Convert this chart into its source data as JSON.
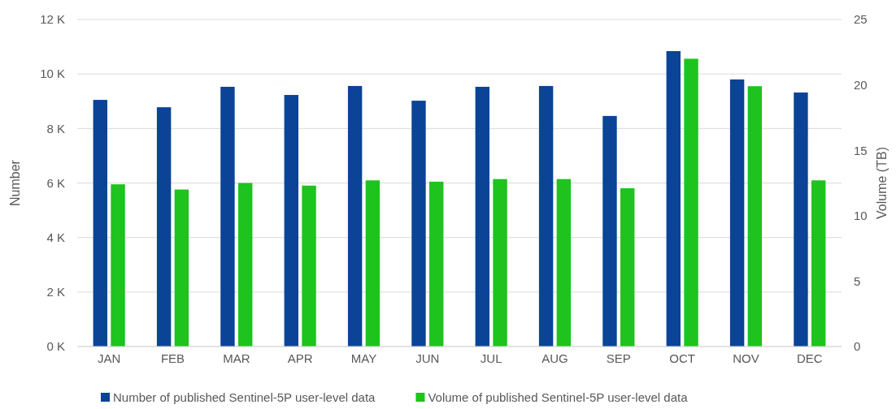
{
  "chart_data": {
    "type": "bar",
    "ylabel": "Number",
    "y2label": "Volume (TB)",
    "categories": [
      "JAN",
      "FEB",
      "MAR",
      "APR",
      "MAY",
      "JUN",
      "JUL",
      "AUG",
      "SEP",
      "OCT",
      "NOV",
      "DEC"
    ],
    "series": [
      {
        "name": "Number of published Sentinel-5P user-level data",
        "color": "#0b4496",
        "values": [
          9.05,
          8.78,
          9.53,
          9.23,
          9.56,
          9.02,
          9.53,
          9.56,
          8.46,
          10.84,
          9.8,
          9.32
        ]
      },
      {
        "name": "Volume of published Sentinel-5P user-level data",
        "color": "#1ec31e",
        "axis": "y2",
        "values": [
          12.4,
          12.0,
          12.5,
          12.3,
          12.7,
          12.6,
          12.8,
          12.8,
          12.1,
          22.0,
          19.9,
          12.7
        ]
      }
    ],
    "ylim": [
      0,
      12
    ],
    "yticks": [
      {
        "value": 0,
        "label": "0 K"
      },
      {
        "value": 2,
        "label": "2 K"
      },
      {
        "value": 4,
        "label": "4 K"
      },
      {
        "value": 6,
        "label": "6 K"
      },
      {
        "value": 8,
        "label": "8 K"
      },
      {
        "value": 10,
        "label": "10 K"
      },
      {
        "value": 12,
        "label": "12 K"
      }
    ],
    "y2lim": [
      0,
      25
    ],
    "y2ticks": [
      0,
      5,
      10,
      15,
      20,
      25
    ],
    "grid": "y",
    "legend": "bottom"
  }
}
